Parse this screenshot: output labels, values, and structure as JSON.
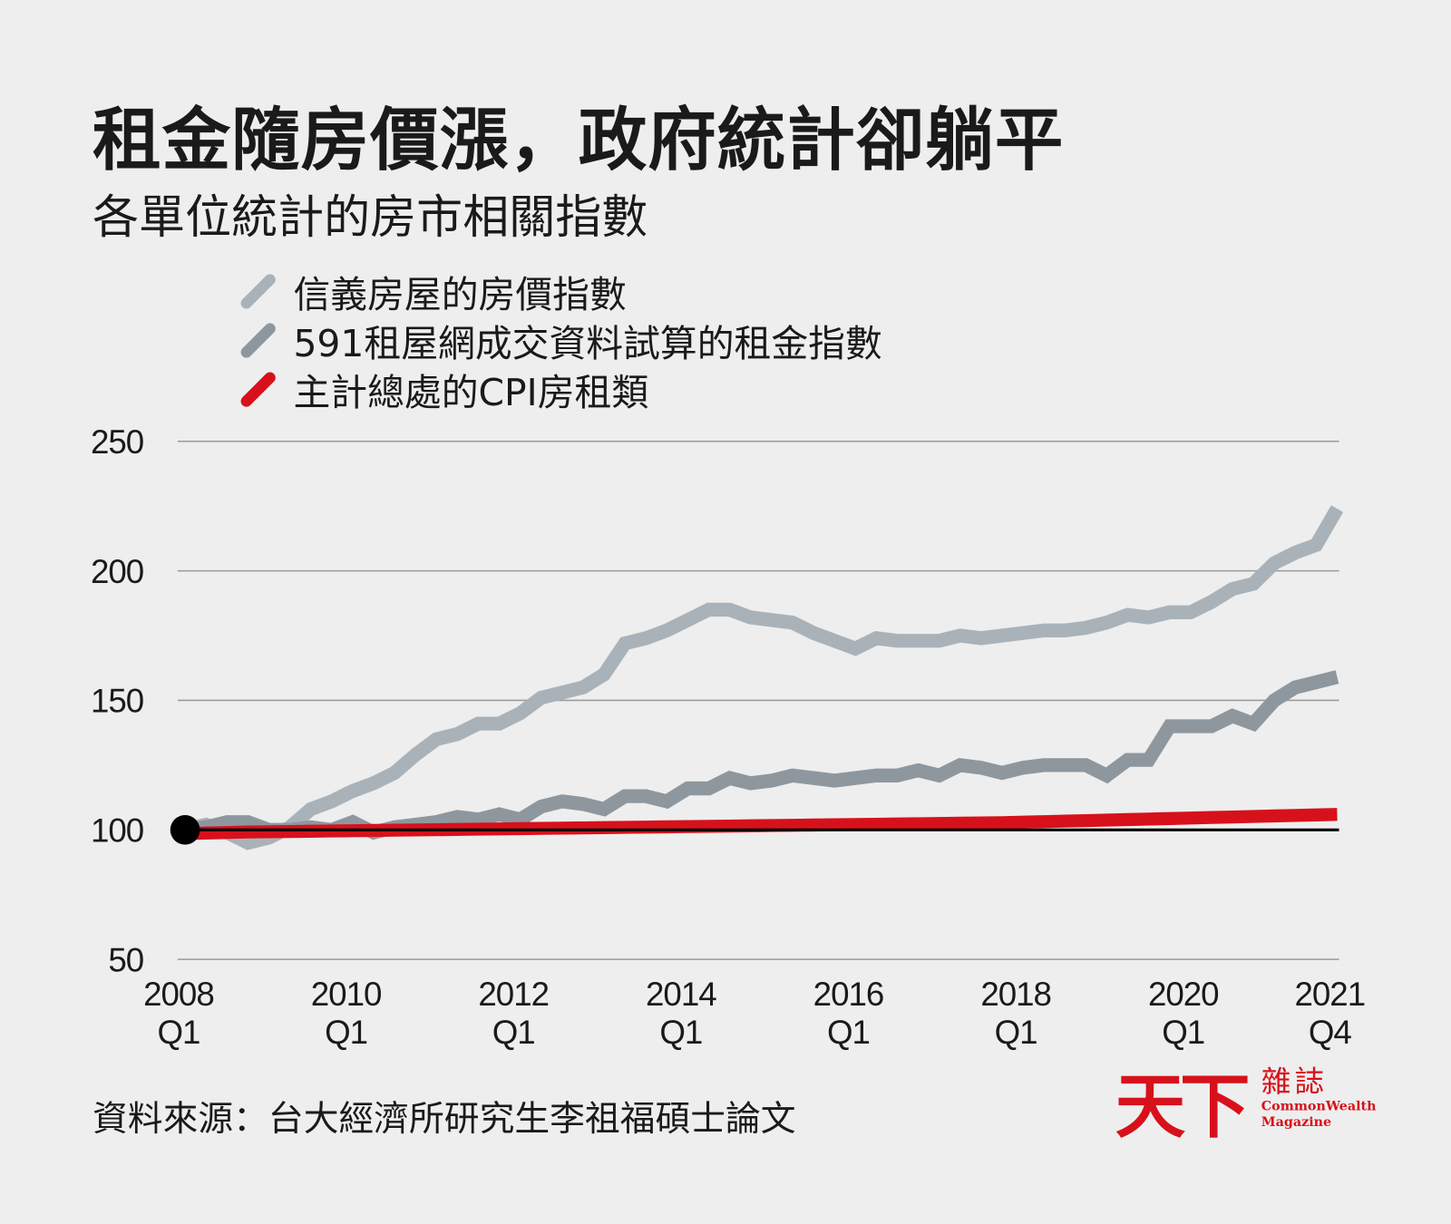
{
  "title": "租金隨房價漲，政府統計卻躺平",
  "subtitle": "各單位統計的房市相關指數",
  "source": "資料來源：台大經濟所研究生李祖福碩士論文",
  "logo": {
    "mark": "天下",
    "zh": "雜誌",
    "en1": "CommonWealth",
    "en2": "Magazine"
  },
  "colors": {
    "background": "#eeeeee",
    "sinyi": "#aab2b9",
    "rent591": "#8f979e",
    "cpi": "#d7111b",
    "baseline": "#000000",
    "grid": "#9a9a9a"
  },
  "chart_data": {
    "type": "line",
    "title": "",
    "xlabel": "",
    "ylabel": "",
    "ylim": [
      50,
      250
    ],
    "yticks": [
      "50",
      "100",
      "150",
      "200",
      "250"
    ],
    "ytick_values": [
      50,
      100,
      150,
      200,
      250
    ],
    "x_range": [
      "2008 Q1",
      "2021 Q4"
    ],
    "xticks": [
      {
        "year": "2008",
        "q": "Q1",
        "index": 0
      },
      {
        "year": "2010",
        "q": "Q1",
        "index": 8
      },
      {
        "year": "2012",
        "q": "Q1",
        "index": 16
      },
      {
        "year": "2014",
        "q": "Q1",
        "index": 24
      },
      {
        "year": "2016",
        "q": "Q1",
        "index": 32
      },
      {
        "year": "2018",
        "q": "Q1",
        "index": 40
      },
      {
        "year": "2020",
        "q": "Q1",
        "index": 48
      },
      {
        "year": "2021",
        "q": "Q4",
        "index": 55
      }
    ],
    "grid": true,
    "baseline": 100,
    "legend_position": "top-left",
    "series": [
      {
        "name": "信義房屋的房價指數",
        "color": "#aab2b9",
        "values": [
          100,
          102,
          99,
          95,
          97,
          101,
          108,
          111,
          115,
          118,
          122,
          129,
          135,
          137,
          141,
          141,
          145,
          151,
          153,
          155,
          160,
          172,
          174,
          177,
          181,
          185,
          185,
          182,
          181,
          180,
          176,
          173,
          170,
          174,
          173,
          173,
          173,
          175,
          174,
          175,
          176,
          177,
          177,
          178,
          180,
          183,
          182,
          184,
          184,
          188,
          193,
          195,
          203,
          207,
          210,
          224
        ]
      },
      {
        "name": "591租屋網成交資料試算的租金指數",
        "color": "#8f979e",
        "values": [
          100,
          101,
          103,
          103,
          100,
          100,
          101,
          100,
          103,
          99,
          101,
          102,
          103,
          105,
          104,
          106,
          104,
          109,
          111,
          110,
          108,
          113,
          113,
          111,
          116,
          116,
          120,
          118,
          119,
          121,
          120,
          119,
          120,
          121,
          121,
          123,
          121,
          125,
          124,
          122,
          124,
          125,
          125,
          125,
          121,
          127,
          127,
          140,
          140,
          140,
          144,
          141,
          150,
          155,
          157,
          159
        ]
      },
      {
        "name": "主計總處的CPI房租類",
        "color": "#d7111b",
        "values": [
          100.0,
          100.2,
          100.4,
          100.6,
          100.7,
          100.8,
          100.9,
          101.0,
          101.1,
          101.2,
          101.3,
          101.4,
          101.5,
          101.6,
          101.7,
          101.8,
          101.9,
          102.0,
          102.1,
          102.2,
          102.3,
          102.4,
          102.5,
          102.6,
          102.7,
          102.8,
          102.9,
          103.0,
          103.1,
          103.2,
          103.3,
          103.4,
          103.5,
          103.6,
          103.7,
          103.8,
          103.9,
          104.0,
          104.1,
          104.2,
          104.4,
          104.6,
          104.8,
          105.0,
          105.2,
          105.4,
          105.6,
          105.8,
          106.0,
          106.2,
          106.4,
          106.6,
          106.8,
          107.0,
          107.2,
          107.4
        ]
      }
    ]
  }
}
